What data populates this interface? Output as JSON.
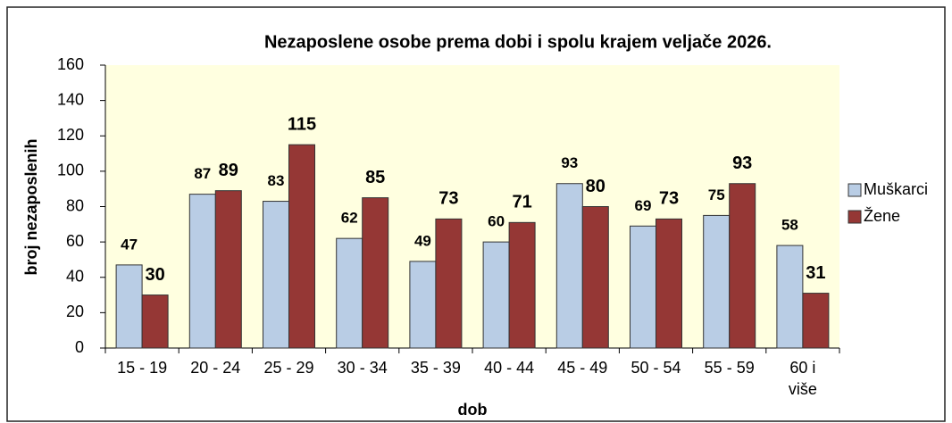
{
  "chart_data": {
    "type": "bar",
    "title": "Nezaposlene osobe prema dobi i spolu krajem veljače 2026.",
    "xlabel": "dob",
    "ylabel": "broj nezaposlenih",
    "categories": [
      "15 - 19",
      "20 - 24",
      "25 - 29",
      "30 - 34",
      "35 - 39",
      "40 - 44",
      "45 - 49",
      "50 - 54",
      "55 - 59",
      "60 i više"
    ],
    "series": [
      {
        "name": "Muškarci",
        "color": "#b9cde5",
        "values": [
          47,
          87,
          83,
          62,
          49,
          60,
          93,
          69,
          75,
          58
        ]
      },
      {
        "name": "Žene",
        "color": "#953735",
        "values": [
          30,
          89,
          115,
          85,
          73,
          71,
          80,
          73,
          93,
          31
        ]
      }
    ],
    "ylim": [
      0,
      160
    ],
    "yticks": [
      0,
      20,
      40,
      60,
      80,
      100,
      120,
      140,
      160
    ],
    "legend": "right"
  }
}
